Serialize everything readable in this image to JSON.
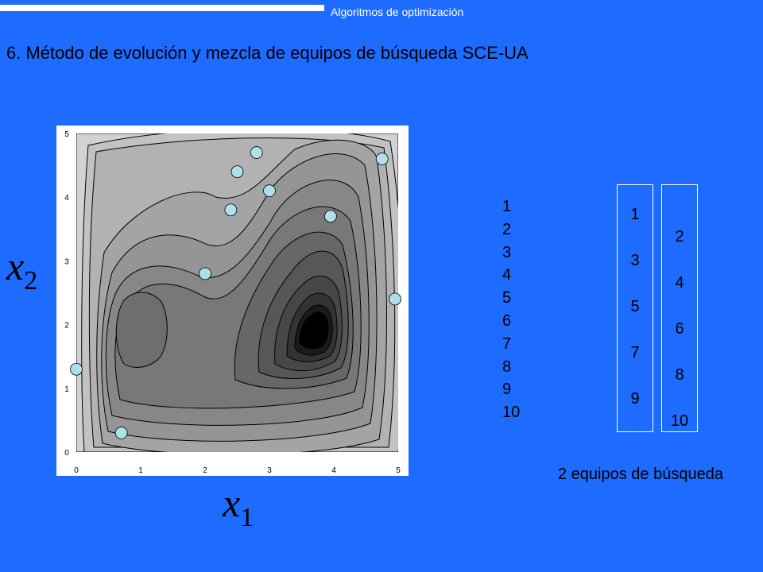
{
  "header": {
    "label": "Algoritmos de optimización"
  },
  "title": "6. Método de evolución y mezcla de equipos de búsqueda SCE-UA",
  "plot": {
    "x_ticks": [
      "0",
      "1",
      "2",
      "3",
      "4",
      "5"
    ],
    "y_ticks": [
      "0",
      "1",
      "2",
      "3",
      "4",
      "5"
    ],
    "points": [
      {
        "x": 0.0,
        "y": 1.3
      },
      {
        "x": 0.7,
        "y": 0.3
      },
      {
        "x": 2.0,
        "y": 2.8
      },
      {
        "x": 2.4,
        "y": 3.8
      },
      {
        "x": 2.5,
        "y": 4.4
      },
      {
        "x": 2.8,
        "y": 4.7
      },
      {
        "x": 3.0,
        "y": 4.1
      },
      {
        "x": 3.95,
        "y": 3.7
      },
      {
        "x": 4.75,
        "y": 4.6
      },
      {
        "x": 4.95,
        "y": 2.4
      }
    ],
    "point_color": "#aee0ec"
  },
  "axis_x": {
    "symbol": "x",
    "sub": "1"
  },
  "axis_y": {
    "symbol": "x",
    "sub": "2"
  },
  "rank_list": [
    "1",
    "2",
    "3",
    "4",
    "5",
    "6",
    "7",
    "8",
    "9",
    "10"
  ],
  "team_a": [
    "1",
    "3",
    "5",
    "7",
    "9"
  ],
  "team_b": [
    "2",
    "4",
    "6",
    "8",
    "10"
  ],
  "caption": "2 equipos de búsqueda"
}
